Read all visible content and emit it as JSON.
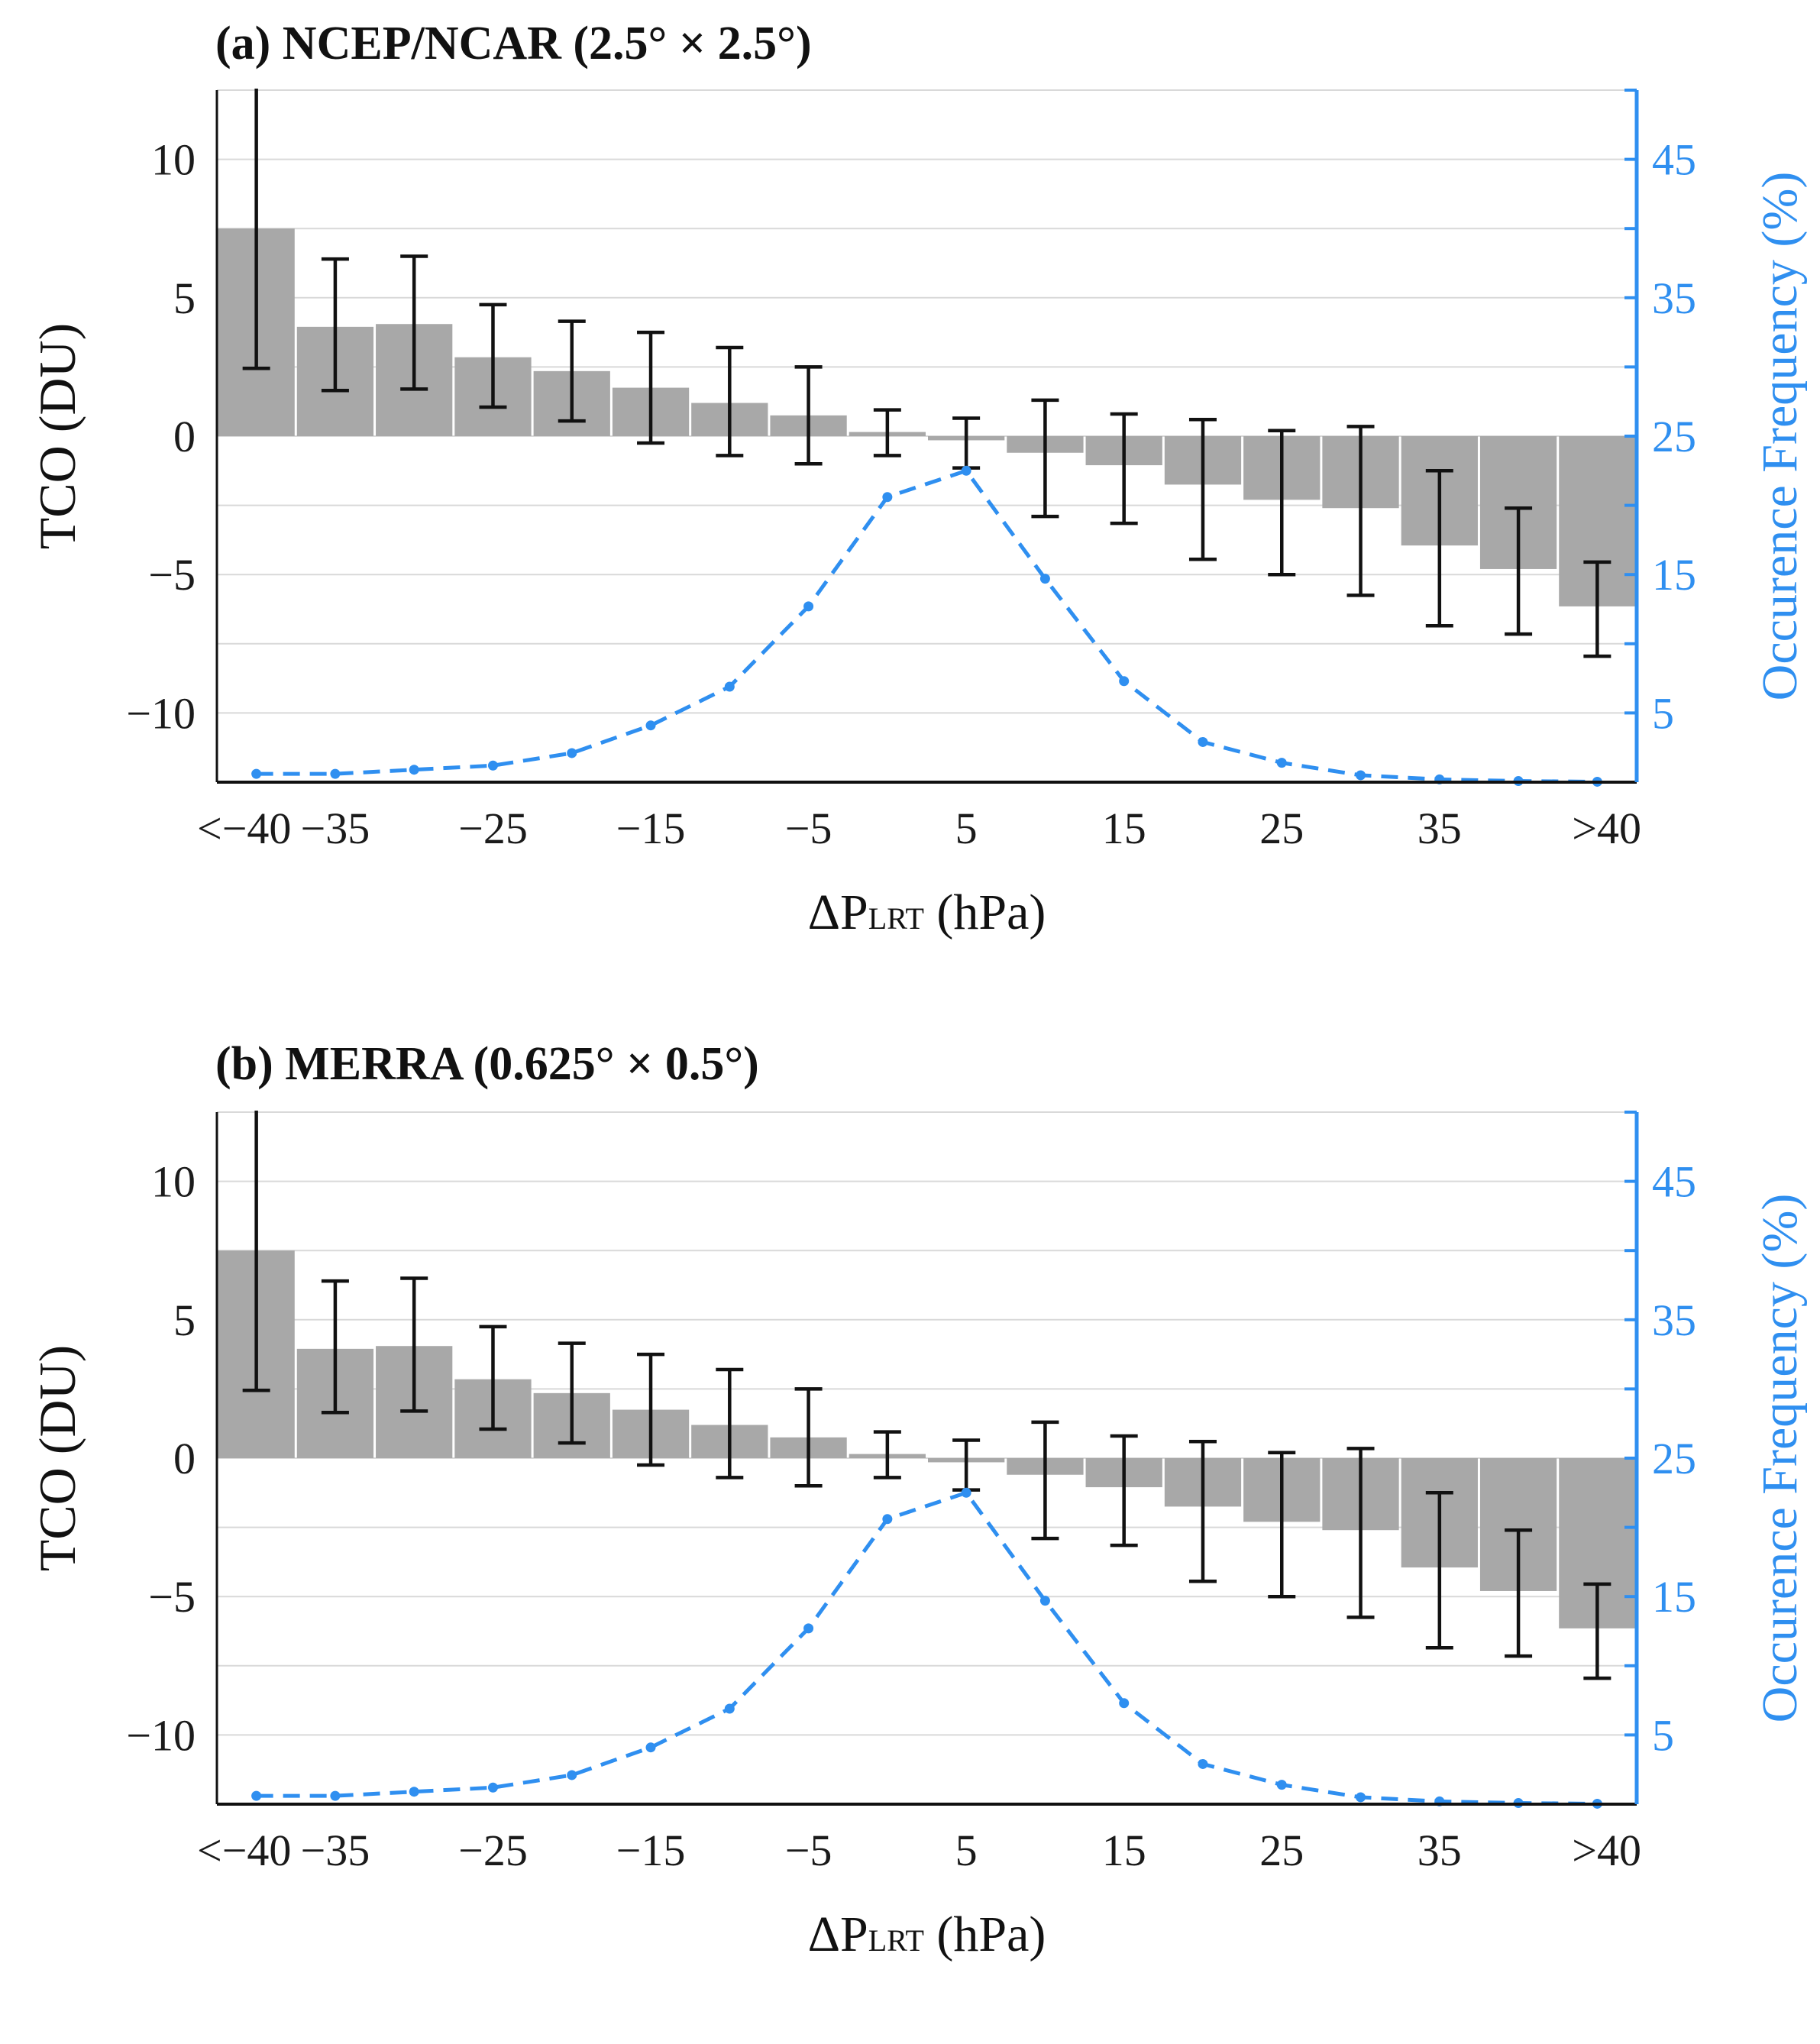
{
  "chart_data": [
    {
      "type": "bar",
      "title": "(a) NCEP/NCAR (2.5° × 2.5°)",
      "xlabel": "ΔP",
      "xlabel_sub": "LRT",
      "xlabel_unit": "(hPa)",
      "ylabel": "TCO (DU)",
      "y2label": "Occurence Frequency (%)",
      "ylim": [
        -12.5,
        12.5
      ],
      "y2lim": [
        0,
        50
      ],
      "yticks": [
        10,
        5,
        0,
        -5,
        -10
      ],
      "ytick_labels": [
        "10",
        "5",
        "0",
        "−5",
        "−10"
      ],
      "y2ticks": [
        45,
        35,
        25,
        15,
        5
      ],
      "y2tick_labels": [
        "45",
        "35",
        "25",
        "15",
        "5"
      ],
      "xtick_labels": [
        "<−40",
        "−35",
        "−25",
        "−15",
        "−5",
        "5",
        "15",
        "25",
        "35",
        ">40"
      ],
      "xtick_bins": [
        0,
        1,
        3,
        5,
        7,
        9,
        11,
        13,
        15,
        17
      ],
      "grid": true,
      "series": [
        {
          "name": "TCO",
          "type": "bar",
          "color": "#a8a8a8",
          "values": [
            7.5,
            3.95,
            4.05,
            2.85,
            2.35,
            1.75,
            1.2,
            0.75,
            0.15,
            -0.15,
            -0.6,
            -1.05,
            -1.75,
            -2.3,
            -2.6,
            -3.95,
            -4.8,
            -6.15
          ],
          "err_upper": [
            13.0,
            6.4,
            6.5,
            4.75,
            4.15,
            3.75,
            3.2,
            2.5,
            0.95,
            0.65,
            1.3,
            0.8,
            0.6,
            0.2,
            0.35,
            -1.25,
            -2.6,
            -4.55
          ],
          "err_lower": [
            2.45,
            1.65,
            1.7,
            1.05,
            0.55,
            -0.25,
            -0.7,
            -1.0,
            -0.7,
            -1.15,
            -2.9,
            -3.15,
            -4.45,
            -5.0,
            -5.75,
            -6.85,
            -7.15,
            -7.95
          ]
        },
        {
          "name": "Occurence Frequency",
          "type": "line",
          "color": "#2f8ff0",
          "axis": "right",
          "values": [
            0.6,
            0.6,
            0.9,
            1.2,
            2.1,
            4.1,
            6.9,
            12.7,
            20.6,
            22.5,
            14.7,
            7.3,
            2.9,
            1.4,
            0.5,
            0.2,
            0.08,
            0.03
          ]
        }
      ]
    },
    {
      "type": "bar",
      "title": "(b) MERRA (0.625° × 0.5°)",
      "xlabel": "ΔP",
      "xlabel_sub": "LRT",
      "xlabel_unit": "(hPa)",
      "ylabel": "TCO (DU)",
      "y2label": "Occurence Frequency (%)",
      "ylim": [
        -12.5,
        12.5
      ],
      "y2lim": [
        0,
        50
      ],
      "yticks": [
        10,
        5,
        0,
        -5,
        -10
      ],
      "ytick_labels": [
        "10",
        "5",
        "0",
        "−5",
        "−10"
      ],
      "y2ticks": [
        45,
        35,
        25,
        15,
        5
      ],
      "y2tick_labels": [
        "45",
        "35",
        "25",
        "15",
        "5"
      ],
      "xtick_labels": [
        "<−40",
        "−35",
        "−25",
        "−15",
        "−5",
        "5",
        "15",
        "25",
        "35",
        ">40"
      ],
      "xtick_bins": [
        0,
        1,
        3,
        5,
        7,
        9,
        11,
        13,
        15,
        17
      ],
      "grid": true,
      "series": [
        {
          "name": "TCO",
          "type": "bar",
          "color": "#a8a8a8",
          "values": [
            7.5,
            3.95,
            4.05,
            2.85,
            2.35,
            1.75,
            1.2,
            0.75,
            0.15,
            -0.15,
            -0.6,
            -1.05,
            -1.75,
            -2.3,
            -2.6,
            -3.95,
            -4.8,
            -6.15
          ],
          "err_upper": [
            13.0,
            6.4,
            6.5,
            4.75,
            4.15,
            3.75,
            3.2,
            2.5,
            0.95,
            0.65,
            1.3,
            0.8,
            0.6,
            0.2,
            0.35,
            -1.25,
            -2.6,
            -4.55
          ],
          "err_lower": [
            2.45,
            1.65,
            1.7,
            1.05,
            0.55,
            -0.25,
            -0.7,
            -1.0,
            -0.7,
            -1.15,
            -2.9,
            -3.15,
            -4.45,
            -5.0,
            -5.75,
            -6.85,
            -7.15,
            -7.95
          ]
        },
        {
          "name": "Occurence Frequency",
          "type": "line",
          "color": "#2f8ff0",
          "axis": "right",
          "values": [
            0.6,
            0.6,
            0.9,
            1.2,
            2.1,
            4.1,
            6.9,
            12.7,
            20.6,
            22.5,
            14.7,
            7.3,
            2.9,
            1.4,
            0.5,
            0.2,
            0.08,
            0.03
          ]
        }
      ]
    }
  ]
}
